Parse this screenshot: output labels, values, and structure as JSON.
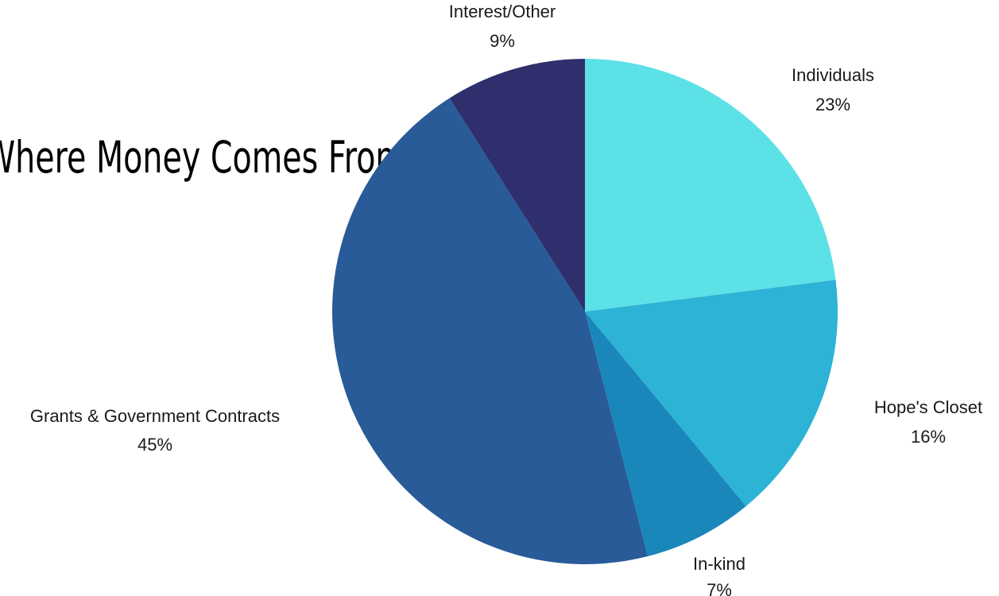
{
  "chart_data": {
    "type": "pie",
    "title": "Where Money Comes From",
    "start_angle_deg": 0,
    "direction": "clockwise",
    "slices": [
      {
        "label": "Individuals",
        "value": 23,
        "value_label": "23%",
        "color": "#5ce1e6"
      },
      {
        "label": "Hope's Closet",
        "value": 16,
        "value_label": "16%",
        "color": "#2db3d6"
      },
      {
        "label": "In-kind",
        "value": 7,
        "value_label": "7%",
        "color": "#1a87bb"
      },
      {
        "label": "Grants & Government Contracts",
        "value": 45,
        "value_label": "45%",
        "color": "#285b98"
      },
      {
        "label": "Interest/Other",
        "value": 9,
        "value_label": "9%",
        "color": "#2e2f6c"
      }
    ]
  }
}
